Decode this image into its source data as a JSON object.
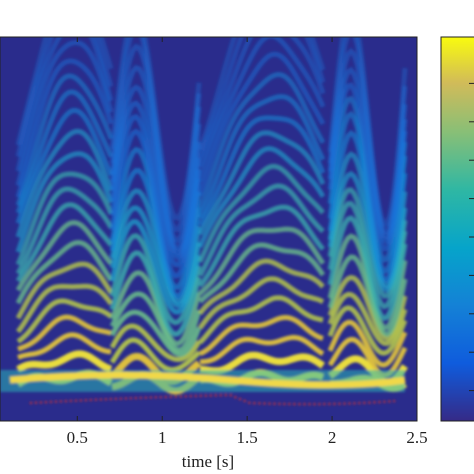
{
  "chart_data": {
    "type": "spectrogram",
    "xlabel": "time [s]",
    "xlim": [
      0.045,
      2.5
    ],
    "xticks": [
      0.5,
      1,
      1.5,
      2,
      2.5
    ]
  }
}
